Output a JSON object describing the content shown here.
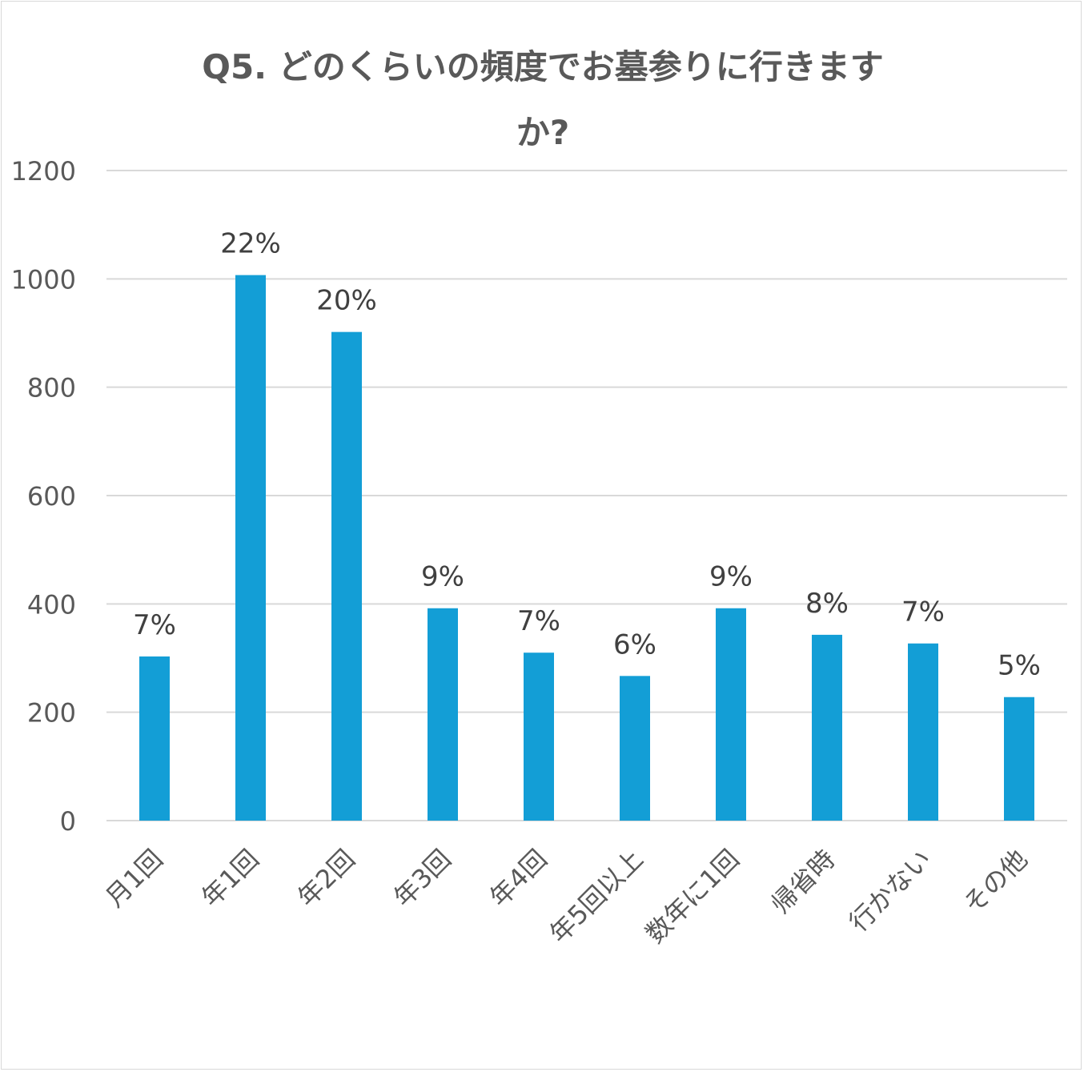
{
  "chart_data": {
    "type": "bar",
    "title_lines": [
      "Q5. どのくらいの頻度でお墓参りに行きます",
      "か?"
    ],
    "categories": [
      "月1回",
      "年1回",
      "年2回",
      "年3回",
      "年4回",
      "年5回以上",
      "数年に1回",
      "帰省時",
      "行かない",
      "その他"
    ],
    "values": [
      303,
      1007,
      902,
      392,
      310,
      267,
      392,
      343,
      327,
      228
    ],
    "data_labels": [
      "7%",
      "22%",
      "20%",
      "9%",
      "7%",
      "6%",
      "9%",
      "8%",
      "7%",
      "5%"
    ],
    "yticks": [
      "0",
      "200",
      "400",
      "600",
      "800",
      "1000",
      "1200"
    ],
    "ylim": [
      0,
      1200
    ],
    "grid": true,
    "xlabel": "",
    "ylabel": "",
    "colors": {
      "bar": "#139ED6",
      "grid": "#d9d9d9"
    }
  }
}
